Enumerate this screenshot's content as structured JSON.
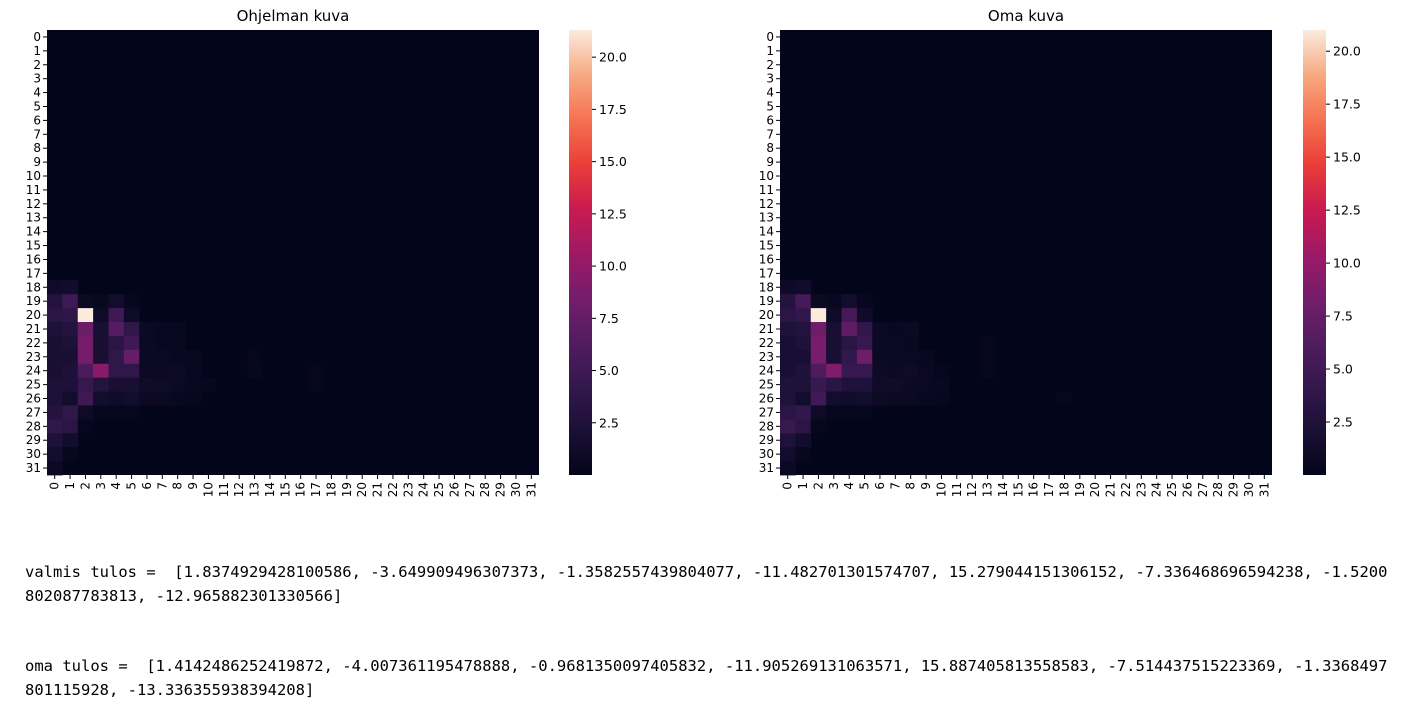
{
  "chart_data": [
    {
      "type": "heatmap",
      "title": "Ohjelman kuva",
      "xlabel": "",
      "ylabel": "",
      "x_ticks": [
        "0",
        "1",
        "2",
        "3",
        "4",
        "5",
        "6",
        "7",
        "8",
        "9",
        "10",
        "11",
        "12",
        "13",
        "14",
        "15",
        "16",
        "17",
        "18",
        "19",
        "20",
        "21",
        "22",
        "23",
        "24",
        "25",
        "26",
        "27",
        "28",
        "29",
        "30",
        "31"
      ],
      "y_ticks": [
        "0",
        "1",
        "2",
        "3",
        "4",
        "5",
        "6",
        "7",
        "8",
        "9",
        "10",
        "11",
        "12",
        "13",
        "14",
        "15",
        "16",
        "17",
        "18",
        "19",
        "20",
        "21",
        "22",
        "23",
        "24",
        "25",
        "26",
        "27",
        "28",
        "29",
        "30",
        "31"
      ],
      "colorbar": {
        "ticks": [
          "2.5",
          "5.0",
          "7.5",
          "10.0",
          "12.5",
          "15.0",
          "17.5",
          "20.0"
        ],
        "vmin": 0,
        "vmax": 21.3
      },
      "colormap": "rocket",
      "background_value": 0,
      "nonzero_cells": [
        {
          "row": 18,
          "col": 0,
          "value": 1.2
        },
        {
          "row": 18,
          "col": 1,
          "value": 1.5
        },
        {
          "row": 19,
          "col": 0,
          "value": 3.0
        },
        {
          "row": 19,
          "col": 1,
          "value": 5.0
        },
        {
          "row": 19,
          "col": 2,
          "value": 0.8
        },
        {
          "row": 19,
          "col": 3,
          "value": 0.5
        },
        {
          "row": 19,
          "col": 4,
          "value": 1.5
        },
        {
          "row": 19,
          "col": 5,
          "value": 0.4
        },
        {
          "row": 20,
          "col": 0,
          "value": 3.5
        },
        {
          "row": 20,
          "col": 1,
          "value": 3.8
        },
        {
          "row": 20,
          "col": 2,
          "value": 21.3
        },
        {
          "row": 20,
          "col": 3,
          "value": 1.0
        },
        {
          "row": 20,
          "col": 4,
          "value": 5.0
        },
        {
          "row": 20,
          "col": 5,
          "value": 1.0
        },
        {
          "row": 21,
          "col": 0,
          "value": 2.5
        },
        {
          "row": 21,
          "col": 1,
          "value": 3.0
        },
        {
          "row": 21,
          "col": 2,
          "value": 8.0
        },
        {
          "row": 21,
          "col": 3,
          "value": 2.0
        },
        {
          "row": 21,
          "col": 4,
          "value": 6.5
        },
        {
          "row": 21,
          "col": 5,
          "value": 4.0
        },
        {
          "row": 21,
          "col": 6,
          "value": 0.7
        },
        {
          "row": 21,
          "col": 7,
          "value": 0.5
        },
        {
          "row": 21,
          "col": 8,
          "value": 0.6
        },
        {
          "row": 22,
          "col": 0,
          "value": 2.0
        },
        {
          "row": 22,
          "col": 1,
          "value": 2.5
        },
        {
          "row": 22,
          "col": 2,
          "value": 8.5
        },
        {
          "row": 22,
          "col": 3,
          "value": 2.0
        },
        {
          "row": 22,
          "col": 4,
          "value": 3.5
        },
        {
          "row": 22,
          "col": 5,
          "value": 5.0
        },
        {
          "row": 22,
          "col": 6,
          "value": 0.8
        },
        {
          "row": 22,
          "col": 7,
          "value": 0.6
        },
        {
          "row": 22,
          "col": 8,
          "value": 0.5
        },
        {
          "row": 23,
          "col": 0,
          "value": 2.0
        },
        {
          "row": 23,
          "col": 1,
          "value": 2.0
        },
        {
          "row": 23,
          "col": 2,
          "value": 8.5
        },
        {
          "row": 23,
          "col": 3,
          "value": 2.0
        },
        {
          "row": 23,
          "col": 4,
          "value": 4.0
        },
        {
          "row": 23,
          "col": 5,
          "value": 7.5
        },
        {
          "row": 23,
          "col": 6,
          "value": 0.7
        },
        {
          "row": 23,
          "col": 7,
          "value": 0.8
        },
        {
          "row": 23,
          "col": 8,
          "value": 0.5
        },
        {
          "row": 23,
          "col": 9,
          "value": 0.5
        },
        {
          "row": 23,
          "col": 13,
          "value": 0.3
        },
        {
          "row": 24,
          "col": 0,
          "value": 2.0
        },
        {
          "row": 24,
          "col": 1,
          "value": 2.5
        },
        {
          "row": 24,
          "col": 2,
          "value": 6.0
        },
        {
          "row": 24,
          "col": 3,
          "value": 9.5
        },
        {
          "row": 24,
          "col": 4,
          "value": 4.0
        },
        {
          "row": 24,
          "col": 5,
          "value": 4.0
        },
        {
          "row": 24,
          "col": 6,
          "value": 0.8
        },
        {
          "row": 24,
          "col": 7,
          "value": 0.7
        },
        {
          "row": 24,
          "col": 8,
          "value": 0.9
        },
        {
          "row": 24,
          "col": 9,
          "value": 0.6
        },
        {
          "row": 24,
          "col": 13,
          "value": 0.4
        },
        {
          "row": 24,
          "col": 17,
          "value": 0.3
        },
        {
          "row": 25,
          "col": 0,
          "value": 2.5
        },
        {
          "row": 25,
          "col": 1,
          "value": 2.5
        },
        {
          "row": 25,
          "col": 2,
          "value": 4.5
        },
        {
          "row": 25,
          "col": 3,
          "value": 3.0
        },
        {
          "row": 25,
          "col": 4,
          "value": 2.0
        },
        {
          "row": 25,
          "col": 5,
          "value": 2.0
        },
        {
          "row": 25,
          "col": 6,
          "value": 1.2
        },
        {
          "row": 25,
          "col": 7,
          "value": 1.0
        },
        {
          "row": 25,
          "col": 8,
          "value": 0.7
        },
        {
          "row": 25,
          "col": 9,
          "value": 0.6
        },
        {
          "row": 25,
          "col": 10,
          "value": 0.4
        },
        {
          "row": 25,
          "col": 17,
          "value": 0.3
        },
        {
          "row": 26,
          "col": 0,
          "value": 2.5
        },
        {
          "row": 26,
          "col": 1,
          "value": 1.5
        },
        {
          "row": 26,
          "col": 2,
          "value": 5.0
        },
        {
          "row": 26,
          "col": 3,
          "value": 1.5
        },
        {
          "row": 26,
          "col": 4,
          "value": 1.2
        },
        {
          "row": 26,
          "col": 5,
          "value": 1.5
        },
        {
          "row": 26,
          "col": 6,
          "value": 0.8
        },
        {
          "row": 26,
          "col": 7,
          "value": 0.7
        },
        {
          "row": 26,
          "col": 8,
          "value": 0.6
        },
        {
          "row": 26,
          "col": 9,
          "value": 0.4
        },
        {
          "row": 27,
          "col": 0,
          "value": 3.0
        },
        {
          "row": 27,
          "col": 1,
          "value": 4.0
        },
        {
          "row": 27,
          "col": 2,
          "value": 1.0
        },
        {
          "row": 27,
          "col": 3,
          "value": 0.4
        },
        {
          "row": 27,
          "col": 4,
          "value": 0.3
        },
        {
          "row": 27,
          "col": 5,
          "value": 0.3
        },
        {
          "row": 28,
          "col": 0,
          "value": 4.0
        },
        {
          "row": 28,
          "col": 1,
          "value": 3.5
        },
        {
          "row": 28,
          "col": 2,
          "value": 0.3
        },
        {
          "row": 29,
          "col": 0,
          "value": 2.5
        },
        {
          "row": 29,
          "col": 1,
          "value": 1.5
        },
        {
          "row": 30,
          "col": 0,
          "value": 1.5
        },
        {
          "row": 30,
          "col": 1,
          "value": 0.4
        },
        {
          "row": 31,
          "col": 0,
          "value": 0.8
        }
      ]
    },
    {
      "type": "heatmap",
      "title": "Oma kuva",
      "xlabel": "",
      "ylabel": "",
      "x_ticks": [
        "0",
        "1",
        "2",
        "3",
        "4",
        "5",
        "6",
        "7",
        "8",
        "9",
        "10",
        "11",
        "12",
        "13",
        "14",
        "15",
        "16",
        "17",
        "18",
        "19",
        "20",
        "21",
        "22",
        "23",
        "24",
        "25",
        "26",
        "27",
        "28",
        "29",
        "30",
        "31"
      ],
      "y_ticks": [
        "0",
        "1",
        "2",
        "3",
        "4",
        "5",
        "6",
        "7",
        "8",
        "9",
        "10",
        "11",
        "12",
        "13",
        "14",
        "15",
        "16",
        "17",
        "18",
        "19",
        "20",
        "21",
        "22",
        "23",
        "24",
        "25",
        "26",
        "27",
        "28",
        "29",
        "30",
        "31"
      ],
      "colorbar": {
        "ticks": [
          "2.5",
          "5.0",
          "7.5",
          "10.0",
          "12.5",
          "15.0",
          "17.5",
          "20.0"
        ],
        "vmin": 0,
        "vmax": 21.0
      },
      "colormap": "rocket",
      "background_value": 0,
      "nonzero_cells": [
        {
          "row": 18,
          "col": 0,
          "value": 1.0
        },
        {
          "row": 18,
          "col": 1,
          "value": 1.3
        },
        {
          "row": 19,
          "col": 0,
          "value": 3.0
        },
        {
          "row": 19,
          "col": 1,
          "value": 5.5
        },
        {
          "row": 19,
          "col": 2,
          "value": 0.8
        },
        {
          "row": 19,
          "col": 3,
          "value": 0.5
        },
        {
          "row": 19,
          "col": 4,
          "value": 1.5
        },
        {
          "row": 19,
          "col": 5,
          "value": 0.4
        },
        {
          "row": 20,
          "col": 0,
          "value": 3.5
        },
        {
          "row": 20,
          "col": 1,
          "value": 4.0
        },
        {
          "row": 20,
          "col": 2,
          "value": 21.0
        },
        {
          "row": 20,
          "col": 3,
          "value": 1.0
        },
        {
          "row": 20,
          "col": 4,
          "value": 5.5
        },
        {
          "row": 20,
          "col": 5,
          "value": 1.2
        },
        {
          "row": 21,
          "col": 0,
          "value": 2.5
        },
        {
          "row": 21,
          "col": 1,
          "value": 3.0
        },
        {
          "row": 21,
          "col": 2,
          "value": 8.0
        },
        {
          "row": 21,
          "col": 3,
          "value": 2.0
        },
        {
          "row": 21,
          "col": 4,
          "value": 7.0
        },
        {
          "row": 21,
          "col": 5,
          "value": 4.0
        },
        {
          "row": 21,
          "col": 6,
          "value": 0.7
        },
        {
          "row": 21,
          "col": 7,
          "value": 0.5
        },
        {
          "row": 21,
          "col": 8,
          "value": 0.7
        },
        {
          "row": 22,
          "col": 0,
          "value": 2.0
        },
        {
          "row": 22,
          "col": 1,
          "value": 2.5
        },
        {
          "row": 22,
          "col": 2,
          "value": 8.5
        },
        {
          "row": 22,
          "col": 3,
          "value": 2.0
        },
        {
          "row": 22,
          "col": 4,
          "value": 3.5
        },
        {
          "row": 22,
          "col": 5,
          "value": 4.5
        },
        {
          "row": 22,
          "col": 6,
          "value": 0.8
        },
        {
          "row": 22,
          "col": 7,
          "value": 0.6
        },
        {
          "row": 22,
          "col": 8,
          "value": 0.5
        },
        {
          "row": 22,
          "col": 13,
          "value": 0.3
        },
        {
          "row": 23,
          "col": 0,
          "value": 2.0
        },
        {
          "row": 23,
          "col": 1,
          "value": 2.0
        },
        {
          "row": 23,
          "col": 2,
          "value": 8.5
        },
        {
          "row": 23,
          "col": 3,
          "value": 2.0
        },
        {
          "row": 23,
          "col": 4,
          "value": 4.0
        },
        {
          "row": 23,
          "col": 5,
          "value": 8.0
        },
        {
          "row": 23,
          "col": 6,
          "value": 0.7
        },
        {
          "row": 23,
          "col": 7,
          "value": 0.8
        },
        {
          "row": 23,
          "col": 8,
          "value": 0.6
        },
        {
          "row": 23,
          "col": 9,
          "value": 0.5
        },
        {
          "row": 23,
          "col": 13,
          "value": 0.4
        },
        {
          "row": 24,
          "col": 0,
          "value": 2.0
        },
        {
          "row": 24,
          "col": 1,
          "value": 2.5
        },
        {
          "row": 24,
          "col": 2,
          "value": 6.0
        },
        {
          "row": 24,
          "col": 3,
          "value": 9.0
        },
        {
          "row": 24,
          "col": 4,
          "value": 4.5
        },
        {
          "row": 24,
          "col": 5,
          "value": 4.5
        },
        {
          "row": 24,
          "col": 6,
          "value": 0.9
        },
        {
          "row": 24,
          "col": 7,
          "value": 0.7
        },
        {
          "row": 24,
          "col": 8,
          "value": 1.0
        },
        {
          "row": 24,
          "col": 9,
          "value": 0.6
        },
        {
          "row": 24,
          "col": 10,
          "value": 0.3
        },
        {
          "row": 24,
          "col": 13,
          "value": 0.4
        },
        {
          "row": 25,
          "col": 0,
          "value": 2.5
        },
        {
          "row": 25,
          "col": 1,
          "value": 2.5
        },
        {
          "row": 25,
          "col": 2,
          "value": 4.5
        },
        {
          "row": 25,
          "col": 3,
          "value": 3.5
        },
        {
          "row": 25,
          "col": 4,
          "value": 2.5
        },
        {
          "row": 25,
          "col": 5,
          "value": 2.5
        },
        {
          "row": 25,
          "col": 6,
          "value": 1.2
        },
        {
          "row": 25,
          "col": 7,
          "value": 1.2
        },
        {
          "row": 25,
          "col": 8,
          "value": 0.8
        },
        {
          "row": 25,
          "col": 9,
          "value": 0.6
        },
        {
          "row": 25,
          "col": 10,
          "value": 0.5
        },
        {
          "row": 26,
          "col": 0,
          "value": 2.5
        },
        {
          "row": 26,
          "col": 1,
          "value": 1.5
        },
        {
          "row": 26,
          "col": 2,
          "value": 5.0
        },
        {
          "row": 26,
          "col": 3,
          "value": 1.5
        },
        {
          "row": 26,
          "col": 4,
          "value": 1.3
        },
        {
          "row": 26,
          "col": 5,
          "value": 1.5
        },
        {
          "row": 26,
          "col": 6,
          "value": 0.9
        },
        {
          "row": 26,
          "col": 7,
          "value": 0.8
        },
        {
          "row": 26,
          "col": 8,
          "value": 0.7
        },
        {
          "row": 26,
          "col": 9,
          "value": 0.5
        },
        {
          "row": 26,
          "col": 10,
          "value": 0.4
        },
        {
          "row": 26,
          "col": 18,
          "value": 0.3
        },
        {
          "row": 27,
          "col": 0,
          "value": 3.5
        },
        {
          "row": 27,
          "col": 1,
          "value": 4.0
        },
        {
          "row": 27,
          "col": 2,
          "value": 1.0
        },
        {
          "row": 27,
          "col": 3,
          "value": 0.4
        },
        {
          "row": 27,
          "col": 4,
          "value": 0.3
        },
        {
          "row": 27,
          "col": 5,
          "value": 0.3
        },
        {
          "row": 28,
          "col": 0,
          "value": 4.5
        },
        {
          "row": 28,
          "col": 1,
          "value": 3.5
        },
        {
          "row": 28,
          "col": 2,
          "value": 0.3
        },
        {
          "row": 29,
          "col": 0,
          "value": 2.5
        },
        {
          "row": 29,
          "col": 1,
          "value": 1.5
        },
        {
          "row": 30,
          "col": 0,
          "value": 1.5
        },
        {
          "row": 30,
          "col": 1,
          "value": 0.4
        },
        {
          "row": 31,
          "col": 0,
          "value": 0.8
        }
      ]
    }
  ],
  "output": {
    "line1": "valmis tulos =  [1.8374929428100586, -3.649909496307373, -1.3582557439804077, -11.482701301574707, 15.279044151306152, -7.336468696594238, -1.5200802087783813, -12.965882301330566]",
    "line2": "oma tulos =  [1.4142486252419872, -4.007361195478888, -0.9681350097405832, -11.905269131063571, 15.887405813558583, -7.514437515223369, -1.3368497801115928, -13.336355938394208]"
  }
}
